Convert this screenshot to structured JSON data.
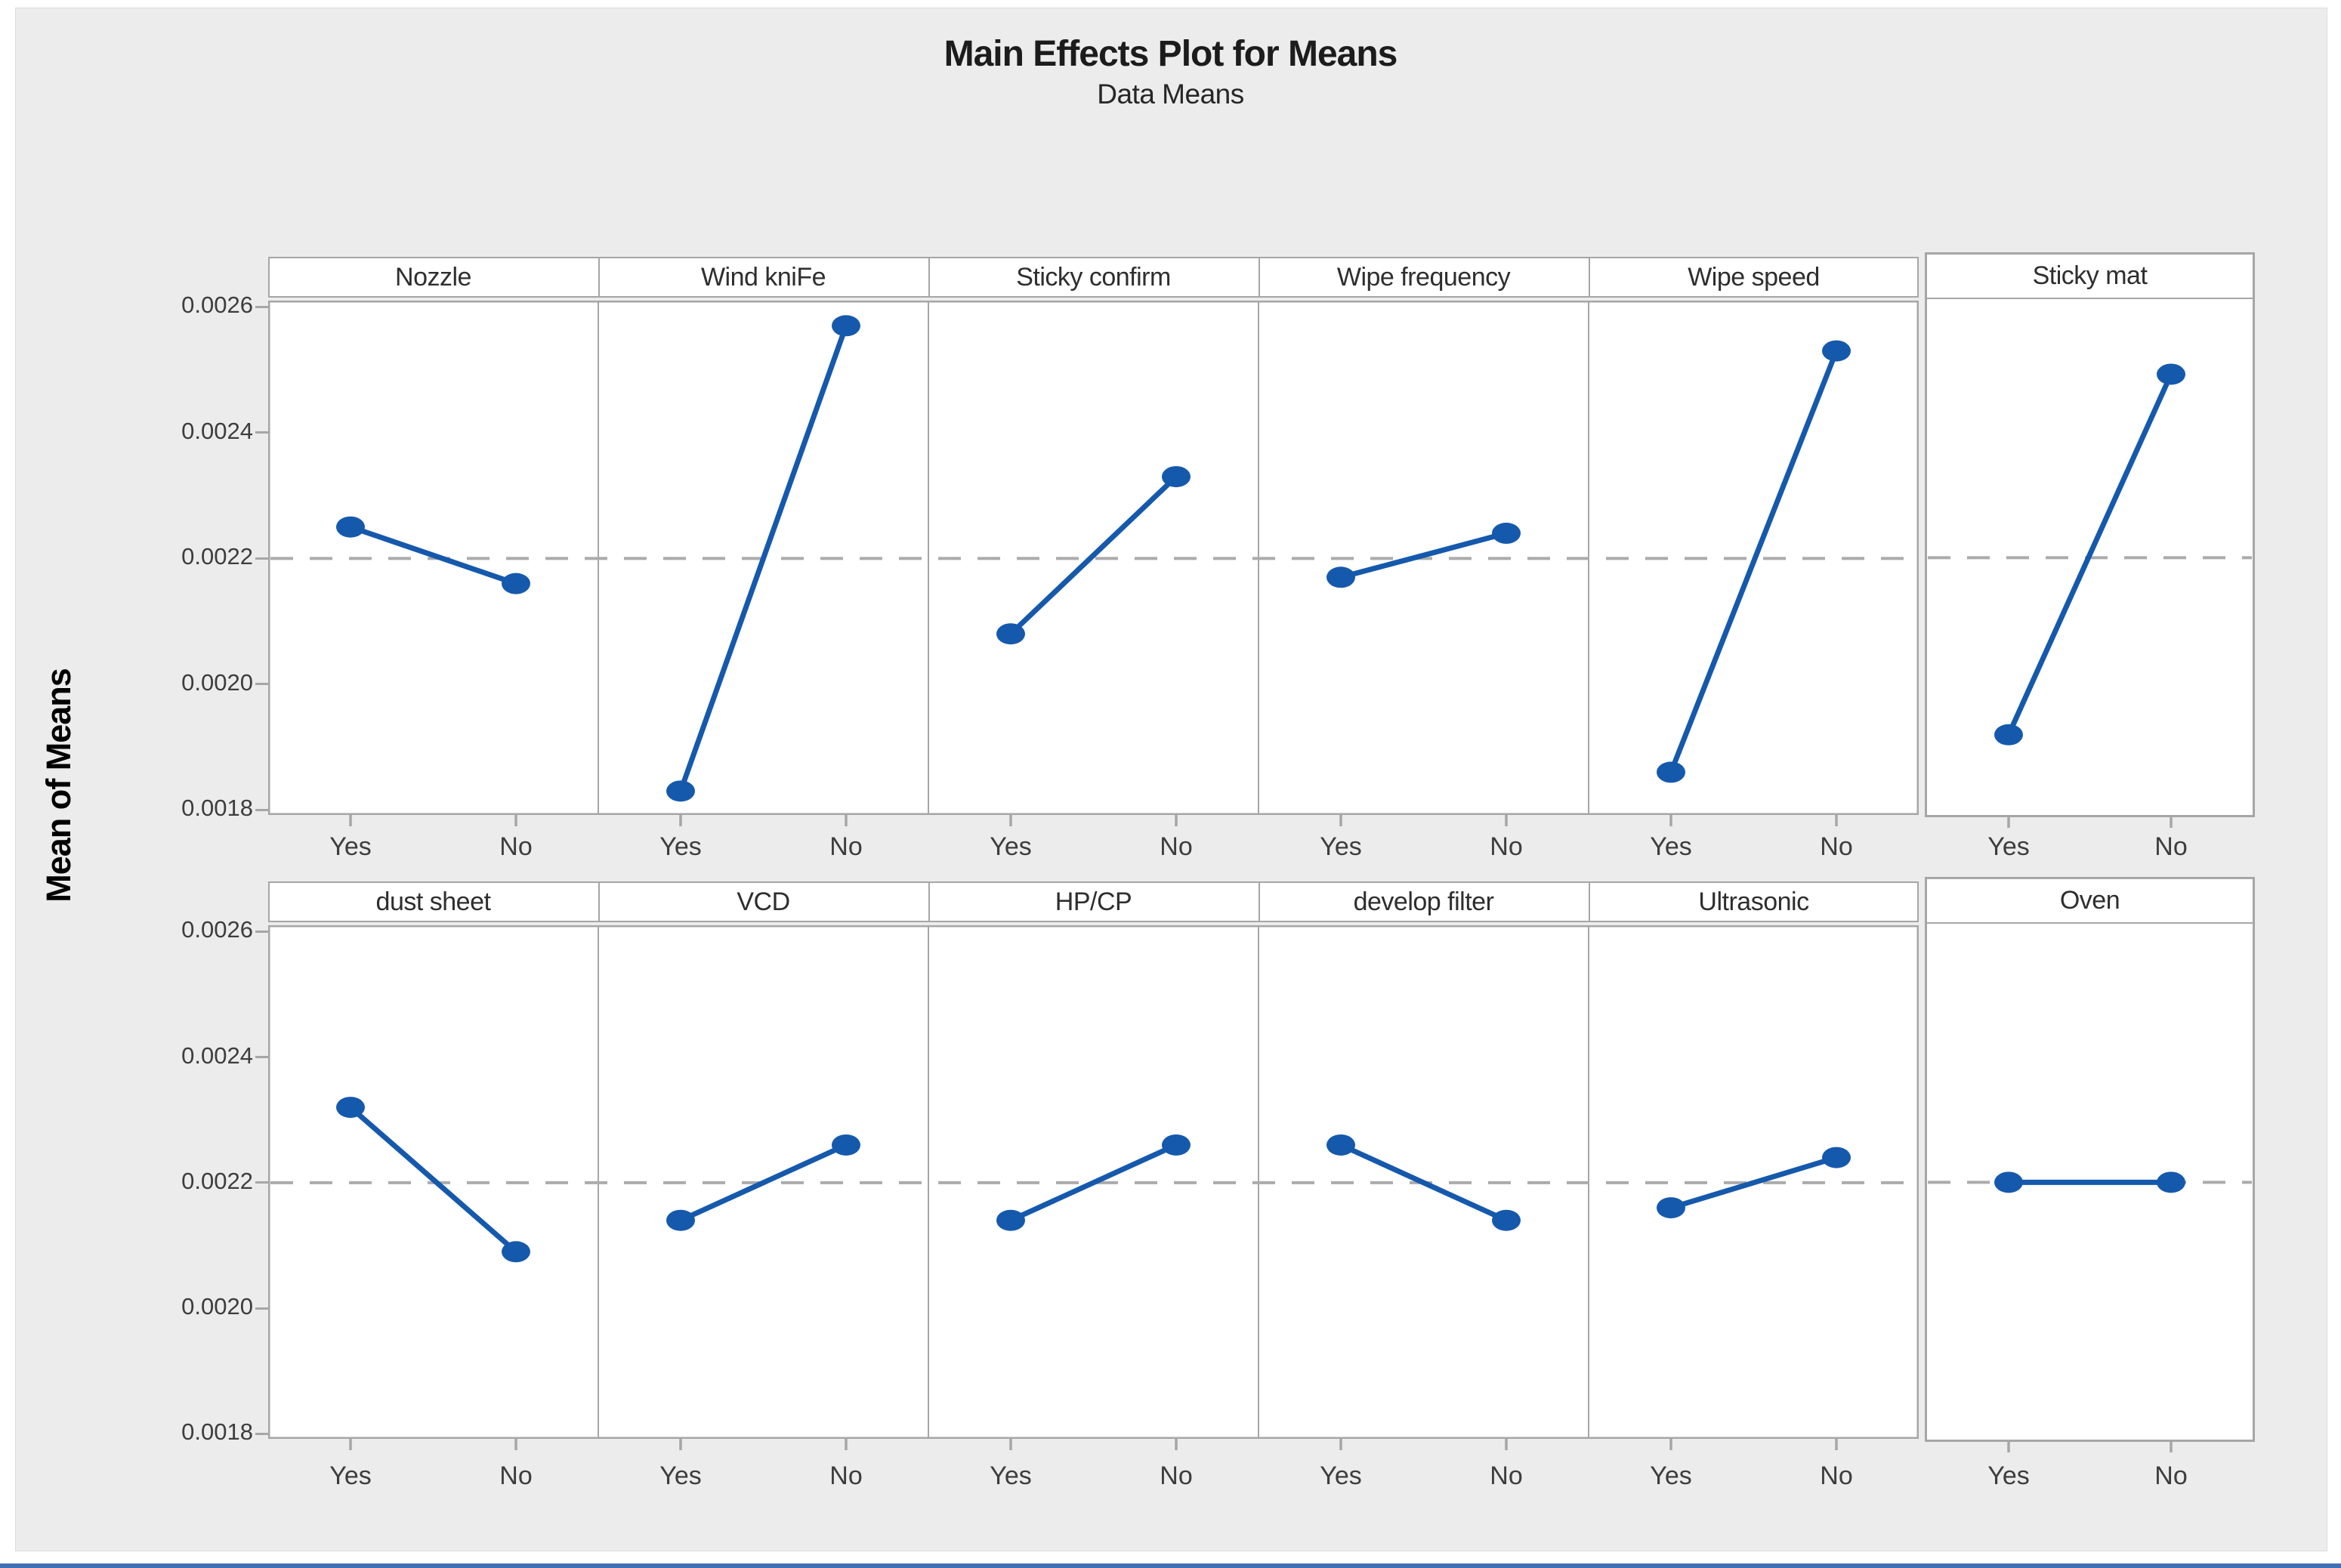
{
  "title": "Main Effects Plot for Means",
  "subtitle": "Data Means",
  "y_axis_label": "Mean of Means",
  "colors": {
    "canvas_bg": "#ececec",
    "panel_bg": "#ffffff",
    "frame": "#a6a6a6",
    "series": "#1559ac",
    "reference": "#ababab",
    "title_text": "#1c1c1c",
    "axis_text": "#3d3d3d",
    "window_bottom_border": "#3f6fb5"
  },
  "chart_data": {
    "type": "line",
    "title": "Main Effects Plot for Means",
    "subtitle": "Data Means",
    "ylabel": "Mean of Means",
    "categories": [
      "Yes",
      "No"
    ],
    "y_tick_labels": [
      "0.0026",
      "0.0024",
      "0.0022",
      "0.0020",
      "0.0018"
    ],
    "y_tick_values": [
      0.0026,
      0.0024,
      0.0022,
      0.002,
      0.0018
    ],
    "ylim": [
      0.001792,
      0.00261
    ],
    "reference_line_mean": 0.0022,
    "grid": false,
    "legend": "none",
    "panels_per_row": 6,
    "panels": [
      {
        "factor": "Nozzle",
        "means": {
          "Yes": 0.00225,
          "No": 0.00216
        }
      },
      {
        "factor": "Wind kniFe",
        "means": {
          "Yes": 0.00183,
          "No": 0.00257
        }
      },
      {
        "factor": "Sticky confirm",
        "means": {
          "Yes": 0.00208,
          "No": 0.00233
        }
      },
      {
        "factor": "Wipe frequency",
        "means": {
          "Yes": 0.00217,
          "No": 0.00224
        }
      },
      {
        "factor": "Wipe speed",
        "means": {
          "Yes": 0.00186,
          "No": 0.00253
        }
      },
      {
        "factor": "Sticky mat",
        "means": {
          "Yes": 0.00192,
          "No": 0.00249
        }
      },
      {
        "factor": "dust sheet",
        "means": {
          "Yes": 0.00232,
          "No": 0.00209
        }
      },
      {
        "factor": "VCD",
        "means": {
          "Yes": 0.00214,
          "No": 0.00226
        }
      },
      {
        "factor": "HP/CP",
        "means": {
          "Yes": 0.00214,
          "No": 0.00226
        }
      },
      {
        "factor": "develop filter",
        "means": {
          "Yes": 0.00226,
          "No": 0.00214
        }
      },
      {
        "factor": "Ultrasonic",
        "means": {
          "Yes": 0.00216,
          "No": 0.00224
        }
      },
      {
        "factor": "Oven",
        "means": {
          "Yes": 0.0022,
          "No": 0.0022
        }
      }
    ]
  }
}
